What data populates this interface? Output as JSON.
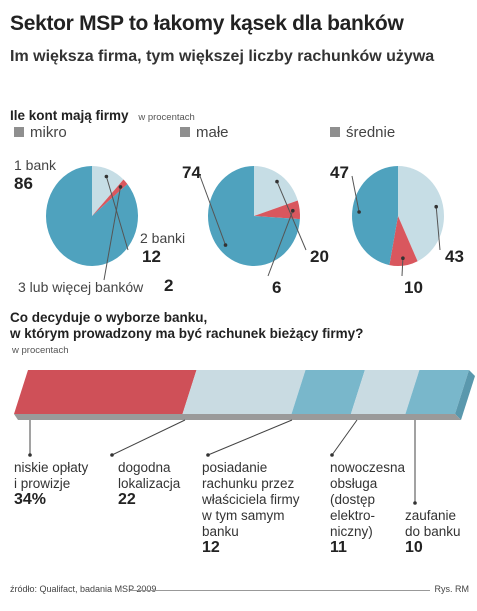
{
  "title": "Sektor MSP to łakomy kąsek dla banków",
  "subtitle": "Im większa firma, tym większej liczby rachunków używa",
  "section1": {
    "heading": "Ile kont mają firmy",
    "unit": "w procentach"
  },
  "section2": {
    "heading_line1": "Co decyduje o wyborze banku,",
    "heading_line2": "w którym prowadzony ma być rachunek bieżący  firmy?",
    "unit": "w procentach"
  },
  "source": "źródło: Qualifact, badania MSP 2009",
  "credit": "Rys. RM",
  "colors": {
    "one_bank": "#4fa2be",
    "two_banks": "#c6dde5",
    "three_plus": "#d9575e",
    "bar_red": "#cf5058",
    "bar_light": "#c9dbe2",
    "bar_blue": "#79b7cb"
  },
  "chart_data": [
    {
      "type": "pie",
      "title": "mikro",
      "categories": [
        "1 bank",
        "2 banki",
        "3 lub więcej banków"
      ],
      "values": [
        86,
        12,
        2
      ],
      "value_labels": [
        "86",
        "12",
        "2"
      ]
    },
    {
      "type": "pie",
      "title": "małe",
      "categories": [
        "1 bank",
        "2 banki",
        "3 lub więcej banków"
      ],
      "values": [
        74,
        20,
        6
      ],
      "value_labels": [
        "74",
        "20",
        "6"
      ]
    },
    {
      "type": "pie",
      "title": "średnie",
      "categories": [
        "1 bank",
        "2 banki",
        "3 lub więcej banków"
      ],
      "values": [
        47,
        43,
        10
      ],
      "value_labels": [
        "47",
        "43",
        "10"
      ]
    },
    {
      "type": "bar",
      "orientation": "stacked-horizontal",
      "categories": [
        [
          "niskie opłaty",
          "i prowizje"
        ],
        [
          "dogodna",
          "lokalizacja"
        ],
        [
          "posiadanie",
          "rachunku przez",
          "właściciela firmy",
          "w tym samym",
          "banku"
        ],
        [
          "nowoczesna",
          "obsługa",
          "(dostęp",
          "elektro-",
          "niczny)"
        ],
        [
          "zaufanie",
          "do banku"
        ]
      ],
      "values": [
        34,
        22,
        12,
        11,
        10
      ],
      "value_labels": [
        "34%",
        "22",
        "12",
        "11",
        "10"
      ],
      "segment_colors": [
        "#cf5058",
        "#c9dbe2",
        "#79b7cb",
        "#c9dbe2",
        "#79b7cb"
      ]
    }
  ]
}
